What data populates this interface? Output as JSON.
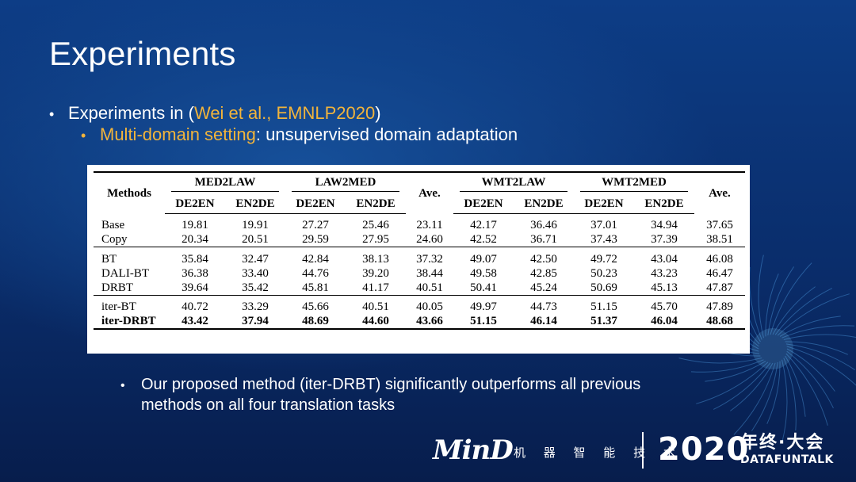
{
  "slide": {
    "title": "Experiments",
    "bullet1": {
      "prefix": "Experiments in (",
      "citation": "Wei et al., EMNLP2020",
      "suffix": ")"
    },
    "bullet2": {
      "highlight": "Multi-domain setting",
      "rest": ": unsupervised domain adaptation"
    },
    "bullet3": {
      "line1": "Our proposed method (iter-DRBT) significantly outperforms all previous",
      "line2": "methods on all four translation tasks"
    },
    "bullet_symbol": "•"
  },
  "table": {
    "methods_header": "Methods",
    "groups": [
      "MED2LAW",
      "LAW2MED",
      "WMT2LAW",
      "WMT2MED"
    ],
    "ave_header": "Ave.",
    "subheaders": [
      "DE2EN",
      "EN2DE"
    ],
    "sections": [
      [
        {
          "method": "Base",
          "values": [
            "19.81",
            "19.91",
            "27.27",
            "25.46",
            "23.11",
            "42.17",
            "36.46",
            "37.01",
            "34.94",
            "37.65"
          ]
        },
        {
          "method": "Copy",
          "values": [
            "20.34",
            "20.51",
            "29.59",
            "27.95",
            "24.60",
            "42.52",
            "36.71",
            "37.43",
            "37.39",
            "38.51"
          ]
        }
      ],
      [
        {
          "method": "BT",
          "values": [
            "35.84",
            "32.47",
            "42.84",
            "38.13",
            "37.32",
            "49.07",
            "42.50",
            "49.72",
            "43.04",
            "46.08"
          ]
        },
        {
          "method": "DALI-BT",
          "values": [
            "36.38",
            "33.40",
            "44.76",
            "39.20",
            "38.44",
            "49.58",
            "42.85",
            "50.23",
            "43.23",
            "46.47"
          ]
        },
        {
          "method": "DRBT",
          "values": [
            "39.64",
            "35.42",
            "45.81",
            "41.17",
            "40.51",
            "50.41",
            "45.24",
            "50.69",
            "45.13",
            "47.87"
          ]
        }
      ],
      [
        {
          "method": "iter-BT",
          "values": [
            "40.72",
            "33.29",
            "45.66",
            "40.51",
            "40.05",
            "49.97",
            "44.73",
            "51.15",
            "45.70",
            "47.89"
          ]
        },
        {
          "method": "iter-DRBT",
          "bold": true,
          "values": [
            "43.42",
            "37.94",
            "48.69",
            "44.60",
            "43.66",
            "51.15",
            "46.14",
            "51.37",
            "46.04",
            "48.68"
          ]
        }
      ]
    ]
  },
  "footer": {
    "logo_text": "MinD",
    "logo_subtitle": "机 器 智 能 技 术",
    "year": "2020",
    "event": "年终·大会",
    "brand": "DATAFUNTALK"
  },
  "colors": {
    "highlight": "#f2b43b",
    "background": "#0d3d86"
  }
}
